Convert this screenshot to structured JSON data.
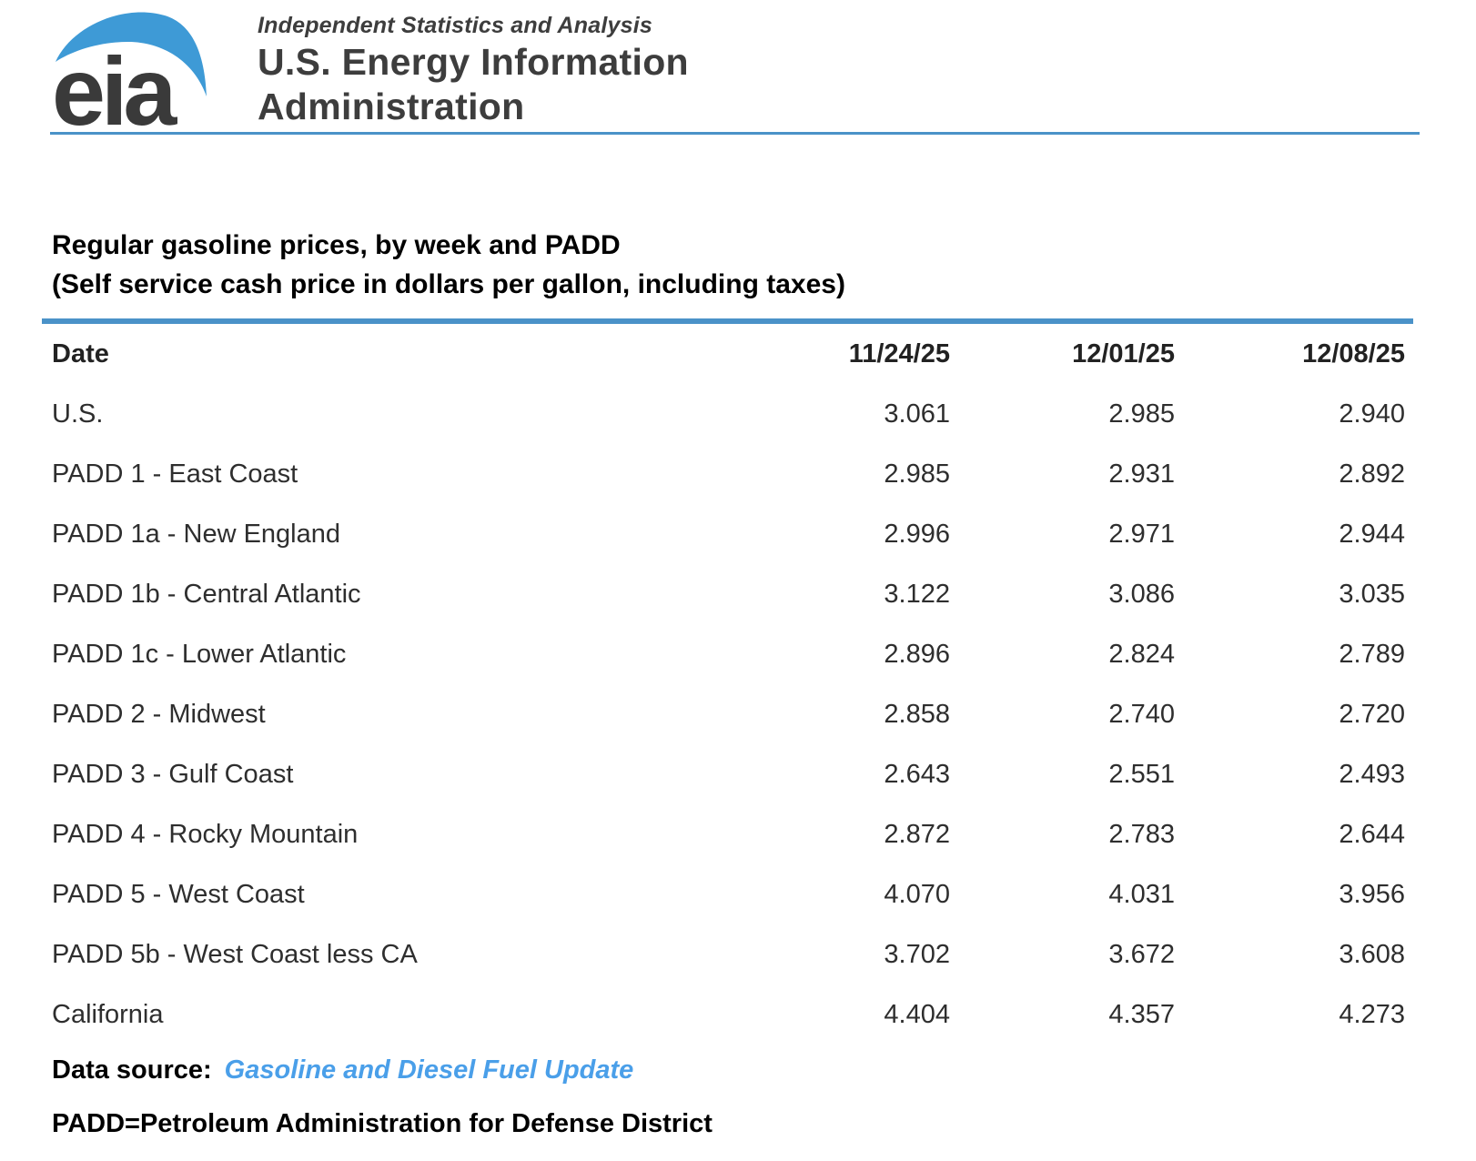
{
  "header": {
    "logo_text": "eia",
    "tagline": "Independent Statistics and Analysis",
    "org_line1": "U.S. Energy Information",
    "org_line2": "Administration"
  },
  "title": {
    "line1": "Regular gasoline prices, by week and PADD",
    "line2": "(Self service cash price in dollars per gallon, including taxes)"
  },
  "table": {
    "columns": [
      "Date",
      "11/24/25",
      "12/01/25",
      "12/08/25"
    ],
    "rows": [
      {
        "label": "U.S.",
        "values": [
          "3.061",
          "2.985",
          "2.940"
        ]
      },
      {
        "label": "PADD 1 - East Coast",
        "values": [
          "2.985",
          "2.931",
          "2.892"
        ]
      },
      {
        "label": "PADD 1a - New England",
        "values": [
          "2.996",
          "2.971",
          "2.944"
        ]
      },
      {
        "label": "PADD 1b - Central Atlantic",
        "values": [
          "3.122",
          "3.086",
          "3.035"
        ]
      },
      {
        "label": "PADD 1c - Lower Atlantic",
        "values": [
          "2.896",
          "2.824",
          "2.789"
        ]
      },
      {
        "label": "PADD 2 - Midwest",
        "values": [
          "2.858",
          "2.740",
          "2.720"
        ]
      },
      {
        "label": "PADD 3 - Gulf Coast",
        "values": [
          "2.643",
          "2.551",
          "2.493"
        ]
      },
      {
        "label": "PADD 4 - Rocky Mountain",
        "values": [
          "2.872",
          "2.783",
          "2.644"
        ]
      },
      {
        "label": "PADD 5 - West Coast",
        "values": [
          "4.070",
          "4.031",
          "3.956"
        ]
      },
      {
        "label": "PADD 5b - West Coast less CA",
        "values": [
          "3.702",
          "3.672",
          "3.608"
        ]
      },
      {
        "label": "California",
        "values": [
          "4.404",
          "4.357",
          "4.273"
        ]
      }
    ]
  },
  "footer": {
    "data_source_label": "Data source:",
    "data_source_link": "Gasoline and Diesel Fuel Update",
    "padd_note": "PADD=Petroleum Administration for Defense District"
  },
  "colors": {
    "brand_rule_blue": "#4a92c8",
    "swoosh_blue": "#3e9ad6",
    "link_blue": "#4a9fe9",
    "logo_dark": "#3a3a3a",
    "table_text": "#2e2e2e"
  }
}
